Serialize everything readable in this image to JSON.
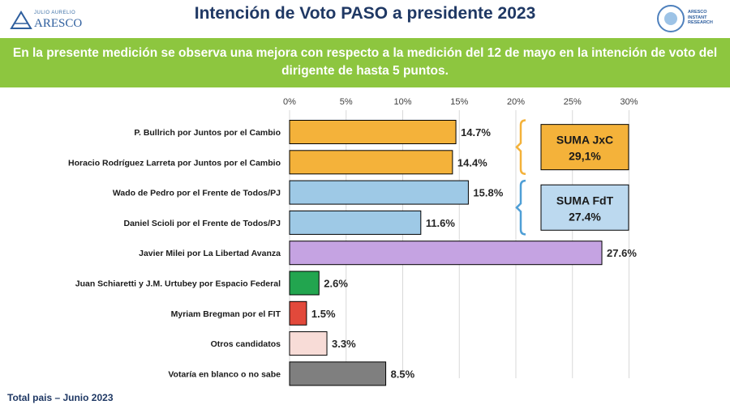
{
  "header": {
    "logo_left_small": "JULIO AURELIO",
    "logo_left_big": "ARESCO",
    "title": "Intención de Voto PASO a presidente 2023",
    "logo_right_text": "ARESCO\nINSTANT\nRESEARCH"
  },
  "banner": {
    "text": "En la presente medición se observa una mejora con respecto a la medición del 12 de mayo en la intención de voto del dirigente de hasta 5 puntos."
  },
  "chart_data": {
    "type": "bar",
    "orientation": "horizontal",
    "title": "Intención de Voto PASO a presidente 2023",
    "categories": [
      "P. Bullrich por Juntos por el Cambio",
      "Horacio Rodríguez Larreta por Juntos por el Cambio",
      "Wado de Pedro por el Frente de Todos/PJ",
      "Daniel Scioli por el Frente de Todos/PJ",
      "Javier Milei por La Libertad Avanza",
      "Juan Schiaretti y J.M. Urtubey por Espacio Federal",
      "Myriam Bregman por el FIT",
      "Otros candidatos",
      "Votaría en blanco o no sabe"
    ],
    "values": [
      14.7,
      14.4,
      15.8,
      11.6,
      27.6,
      2.6,
      1.5,
      3.3,
      8.5
    ],
    "value_labels": [
      "14.7%",
      "14.4%",
      "15.8%",
      "11.6%",
      "27.6%",
      "2.6%",
      "1.5%",
      "3.3%",
      "8.5%"
    ],
    "colors": [
      "#f4b23a",
      "#f4b23a",
      "#9ec9e6",
      "#9ec9e6",
      "#c5a3e2",
      "#22a54f",
      "#e2493b",
      "#f8dcd7",
      "#7f7f7f"
    ],
    "xlim": [
      0,
      30
    ],
    "ticks": [
      0,
      5,
      10,
      15,
      20,
      25,
      30
    ],
    "tick_labels": [
      "0%",
      "5%",
      "10%",
      "15%",
      "20%",
      "25%",
      "30%"
    ],
    "grid": true,
    "annotations": [
      {
        "label": "SUMA JxC",
        "value": "29,1%",
        "rows": [
          0,
          1
        ],
        "color": "#f4b23a",
        "bracket_color": "#f4b23a"
      },
      {
        "label": "SUMA FdT",
        "value": "27.4%",
        "rows": [
          2,
          3
        ],
        "color": "#bcd9ef",
        "bracket_color": "#4f9fd6"
      }
    ]
  },
  "footer": {
    "text": "Total pais – Junio 2023"
  }
}
